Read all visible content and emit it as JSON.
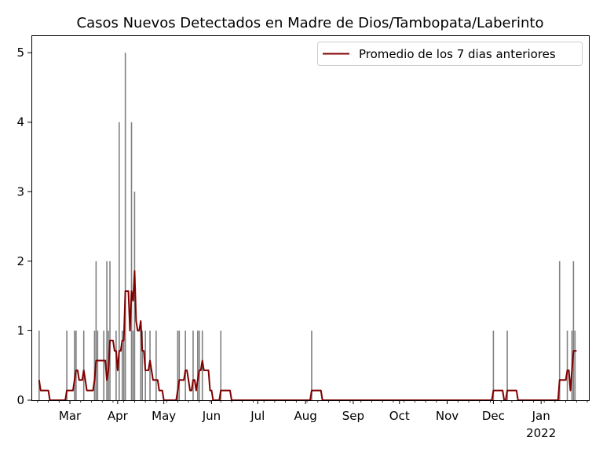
{
  "chart_data": {
    "type": "bar",
    "title": "Casos Nuevos Detectados en Madre de Dios/Tambopata/Laberinto",
    "xlabel": "",
    "ylabel": "",
    "x_range": [
      "2021-02-04",
      "2022-02-01"
    ],
    "ylim": [
      0,
      5.25
    ],
    "y_ticks": [
      0,
      1,
      2,
      3,
      4,
      5
    ],
    "x_ticks": [
      {
        "date": "2021-03-01",
        "label": "Mar"
      },
      {
        "date": "2021-04-01",
        "label": "Apr"
      },
      {
        "date": "2021-05-01",
        "label": "May"
      },
      {
        "date": "2021-06-01",
        "label": "Jun"
      },
      {
        "date": "2021-07-01",
        "label": "Jul"
      },
      {
        "date": "2021-08-01",
        "label": "Aug"
      },
      {
        "date": "2021-09-01",
        "label": "Sep"
      },
      {
        "date": "2021-10-01",
        "label": "Oct"
      },
      {
        "date": "2021-11-01",
        "label": "Nov"
      },
      {
        "date": "2021-12-01",
        "label": "Dec"
      },
      {
        "date": "2022-01-01",
        "label": "Jan",
        "sublabel": "2022"
      }
    ],
    "grid": false,
    "legend_position": "top-right",
    "series": [
      {
        "type": "bar",
        "color": "#808080",
        "points": [
          [
            "2021-02-09",
            1
          ],
          [
            "2021-02-27",
            1
          ],
          [
            "2021-03-04",
            1
          ],
          [
            "2021-03-05",
            1
          ],
          [
            "2021-03-10",
            1
          ],
          [
            "2021-03-17",
            1
          ],
          [
            "2021-03-18",
            2
          ],
          [
            "2021-03-19",
            1
          ],
          [
            "2021-03-23",
            1
          ],
          [
            "2021-03-25",
            2
          ],
          [
            "2021-03-26",
            1
          ],
          [
            "2021-03-27",
            2
          ],
          [
            "2021-03-31",
            1
          ],
          [
            "2021-04-02",
            4
          ],
          [
            "2021-04-04",
            1
          ],
          [
            "2021-04-05",
            1
          ],
          [
            "2021-04-06",
            5
          ],
          [
            "2021-04-10",
            4
          ],
          [
            "2021-04-11",
            1
          ],
          [
            "2021-04-12",
            3
          ],
          [
            "2021-04-16",
            1
          ],
          [
            "2021-04-17",
            1
          ],
          [
            "2021-04-19",
            1
          ],
          [
            "2021-04-22",
            1
          ],
          [
            "2021-04-26",
            1
          ],
          [
            "2021-05-10",
            1
          ],
          [
            "2021-05-11",
            1
          ],
          [
            "2021-05-15",
            1
          ],
          [
            "2021-05-20",
            1
          ],
          [
            "2021-05-23",
            1
          ],
          [
            "2021-05-24",
            1
          ],
          [
            "2021-05-26",
            1
          ],
          [
            "2021-06-07",
            1
          ],
          [
            "2021-08-05",
            1
          ],
          [
            "2021-12-01",
            1
          ],
          [
            "2021-12-10",
            1
          ],
          [
            "2022-01-13",
            2
          ],
          [
            "2022-01-18",
            1
          ],
          [
            "2022-01-21",
            1
          ],
          [
            "2022-01-22",
            2
          ],
          [
            "2022-01-23",
            1
          ]
        ]
      },
      {
        "type": "line",
        "name": "Promedio de los 7 dias anteriores",
        "color": "#800000",
        "points": [
          [
            "2021-02-09",
            0.29
          ],
          [
            "2021-02-10",
            0.14
          ],
          [
            "2021-02-15",
            0.14
          ],
          [
            "2021-02-16",
            0
          ],
          [
            "2021-02-26",
            0
          ],
          [
            "2021-02-27",
            0.14
          ],
          [
            "2021-03-03",
            0.14
          ],
          [
            "2021-03-04",
            0.29
          ],
          [
            "2021-03-05",
            0.43
          ],
          [
            "2021-03-06",
            0.43
          ],
          [
            "2021-03-07",
            0.29
          ],
          [
            "2021-03-09",
            0.29
          ],
          [
            "2021-03-10",
            0.43
          ],
          [
            "2021-03-11",
            0.29
          ],
          [
            "2021-03-12",
            0.14
          ],
          [
            "2021-03-16",
            0.14
          ],
          [
            "2021-03-17",
            0.29
          ],
          [
            "2021-03-18",
            0.57
          ],
          [
            "2021-03-23",
            0.57
          ],
          [
            "2021-03-24",
            0.57
          ],
          [
            "2021-03-25",
            0.29
          ],
          [
            "2021-03-26",
            0.43
          ],
          [
            "2021-03-27",
            0.86
          ],
          [
            "2021-03-29",
            0.86
          ],
          [
            "2021-03-30",
            0.71
          ],
          [
            "2021-03-31",
            0.71
          ],
          [
            "2021-04-01",
            0.43
          ],
          [
            "2021-04-02",
            0.71
          ],
          [
            "2021-04-03",
            0.71
          ],
          [
            "2021-04-04",
            0.86
          ],
          [
            "2021-04-05",
            0.86
          ],
          [
            "2021-04-06",
            1.57
          ],
          [
            "2021-04-08",
            1.57
          ],
          [
            "2021-04-09",
            1.0
          ],
          [
            "2021-04-10",
            1.57
          ],
          [
            "2021-04-11",
            1.43
          ],
          [
            "2021-04-12",
            1.86
          ],
          [
            "2021-04-13",
            1.14
          ],
          [
            "2021-04-14",
            1.0
          ],
          [
            "2021-04-15",
            1.0
          ],
          [
            "2021-04-16",
            1.14
          ],
          [
            "2021-04-17",
            0.71
          ],
          [
            "2021-04-18",
            0.71
          ],
          [
            "2021-04-19",
            0.43
          ],
          [
            "2021-04-21",
            0.43
          ],
          [
            "2021-04-22",
            0.57
          ],
          [
            "2021-04-23",
            0.43
          ],
          [
            "2021-04-24",
            0.29
          ],
          [
            "2021-04-27",
            0.29
          ],
          [
            "2021-04-28",
            0.14
          ],
          [
            "2021-04-30",
            0.14
          ],
          [
            "2021-05-01",
            0
          ],
          [
            "2021-05-09",
            0
          ],
          [
            "2021-05-10",
            0.14
          ],
          [
            "2021-05-11",
            0.29
          ],
          [
            "2021-05-14",
            0.29
          ],
          [
            "2021-05-15",
            0.43
          ],
          [
            "2021-05-16",
            0.43
          ],
          [
            "2021-05-17",
            0.29
          ],
          [
            "2021-05-18",
            0.14
          ],
          [
            "2021-05-19",
            0.14
          ],
          [
            "2021-05-20",
            0.29
          ],
          [
            "2021-05-21",
            0.29
          ],
          [
            "2021-05-22",
            0.14
          ],
          [
            "2021-05-23",
            0.29
          ],
          [
            "2021-05-24",
            0.43
          ],
          [
            "2021-05-25",
            0.43
          ],
          [
            "2021-05-26",
            0.57
          ],
          [
            "2021-05-27",
            0.43
          ],
          [
            "2021-05-30",
            0.43
          ],
          [
            "2021-05-31",
            0.14
          ],
          [
            "2021-06-01",
            0.14
          ],
          [
            "2021-06-02",
            0
          ],
          [
            "2021-06-06",
            0
          ],
          [
            "2021-06-07",
            0.14
          ],
          [
            "2021-06-13",
            0.14
          ],
          [
            "2021-06-14",
            0
          ],
          [
            "2021-08-04",
            0
          ],
          [
            "2021-08-05",
            0.14
          ],
          [
            "2021-08-11",
            0.14
          ],
          [
            "2021-08-12",
            0
          ],
          [
            "2021-11-30",
            0
          ],
          [
            "2021-12-01",
            0.14
          ],
          [
            "2021-12-07",
            0.14
          ],
          [
            "2021-12-08",
            0
          ],
          [
            "2021-12-09",
            0
          ],
          [
            "2021-12-10",
            0.14
          ],
          [
            "2021-12-16",
            0.14
          ],
          [
            "2021-12-17",
            0
          ],
          [
            "2022-01-12",
            0
          ],
          [
            "2022-01-13",
            0.29
          ],
          [
            "2022-01-17",
            0.29
          ],
          [
            "2022-01-18",
            0.43
          ],
          [
            "2022-01-19",
            0.43
          ],
          [
            "2022-01-20",
            0.14
          ],
          [
            "2022-01-21",
            0.43
          ],
          [
            "2022-01-22",
            0.71
          ],
          [
            "2022-01-24",
            0.71
          ]
        ]
      }
    ]
  }
}
